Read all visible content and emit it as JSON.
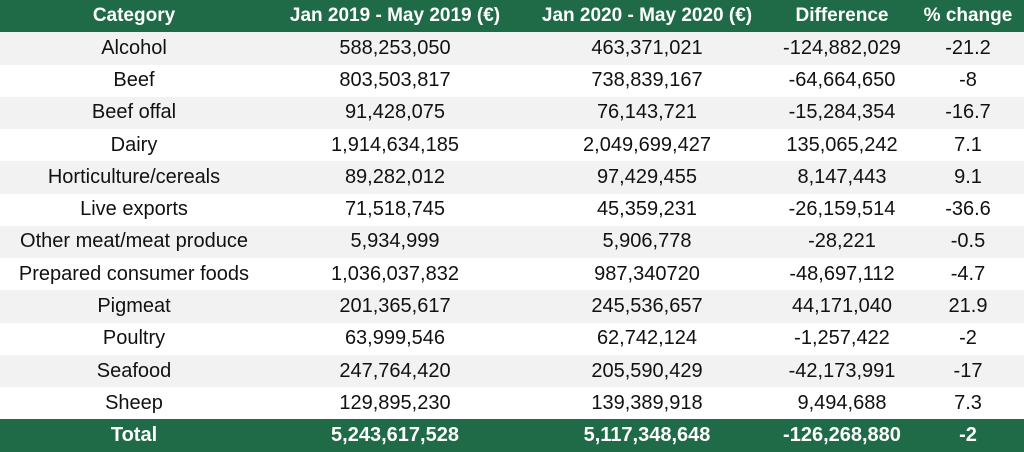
{
  "table": {
    "header": [
      "Category",
      "Jan 2019 - May 2019 (€)",
      "Jan 2020 - May 2020 (€)",
      "Difference",
      "% change"
    ],
    "rows": [
      [
        "Alcohol",
        "588,253,050",
        "463,371,021",
        "-124,882,029",
        "-21.2"
      ],
      [
        "Beef",
        "803,503,817",
        "738,839,167",
        "-64,664,650",
        "-8"
      ],
      [
        "Beef offal",
        "91,428,075",
        "76,143,721",
        "-15,284,354",
        "-16.7"
      ],
      [
        "Dairy",
        "1,914,634,185",
        "2,049,699,427",
        "135,065,242",
        "7.1"
      ],
      [
        "Horticulture/cereals",
        "89,282,012",
        "97,429,455",
        "8,147,443",
        "9.1"
      ],
      [
        "Live exports",
        "71,518,745",
        "45,359,231",
        "-26,159,514",
        "-36.6"
      ],
      [
        "Other meat/meat produce",
        "5,934,999",
        "5,906,778",
        "-28,221",
        "-0.5"
      ],
      [
        "Prepared consumer foods",
        "1,036,037,832",
        "987,340720",
        "-48,697,112",
        "-4.7"
      ],
      [
        "Pigmeat",
        "201,365,617",
        "245,536,657",
        "44,171,040",
        "21.9"
      ],
      [
        "Poultry",
        "63,999,546",
        "62,742,124",
        "-1,257,422",
        "-2"
      ],
      [
        "Seafood",
        "247,764,420",
        "205,590,429",
        "-42,173,991",
        "-17"
      ],
      [
        "Sheep",
        "129,895,230",
        "139,389,918",
        "9,494,688",
        "7.3"
      ]
    ],
    "total": [
      "Total",
      "5,243,617,528",
      "5,117,348,648",
      "-126,268,880",
      "-2"
    ]
  }
}
